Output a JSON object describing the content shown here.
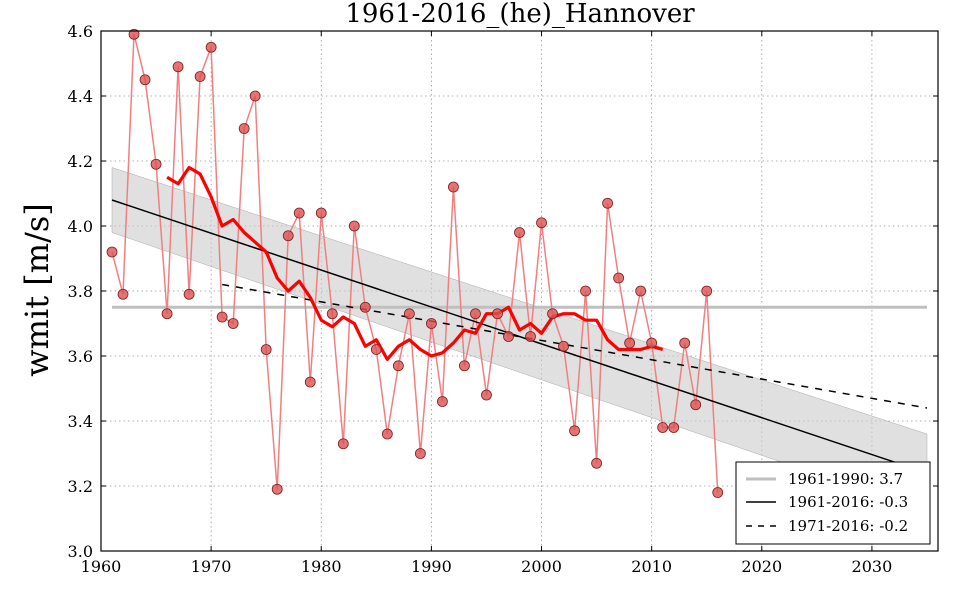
{
  "chart_data": {
    "type": "line",
    "title": "1961-2016_(he)_Hannover",
    "xlabel": "",
    "ylabel": "wmit [m/s]",
    "xlim": [
      1960,
      2036
    ],
    "ylim": [
      3.0,
      4.6
    ],
    "x_ticks": [
      "1960",
      "1970",
      "1980",
      "1990",
      "2000",
      "2010",
      "2020",
      "2030"
    ],
    "y_ticks": [
      "3.0",
      "3.2",
      "3.4",
      "3.6",
      "3.8",
      "4.0",
      "4.2",
      "4.4",
      "4.6"
    ],
    "grid": true,
    "legend_position": "lower-right",
    "colors": {
      "data": "#f08080",
      "marker_fill": "#e05050",
      "moving_avg": "#ff0000",
      "ref_line": "#bfbfbf",
      "trend": "#000000",
      "band": "#cccccc"
    },
    "series": [
      {
        "kind": "observations",
        "x": [
          1961,
          1962,
          1963,
          1964,
          1965,
          1966,
          1967,
          1968,
          1969,
          1970,
          1971,
          1972,
          1973,
          1974,
          1975,
          1976,
          1977,
          1978,
          1979,
          1980,
          1981,
          1982,
          1983,
          1984,
          1985,
          1986,
          1987,
          1988,
          1989,
          1990,
          1991,
          1992,
          1993,
          1994,
          1995,
          1996,
          1997,
          1998,
          1999,
          2000,
          2001,
          2002,
          2003,
          2004,
          2005,
          2006,
          2007,
          2008,
          2009,
          2010,
          2011,
          2012,
          2013,
          2014,
          2015,
          2016
        ],
        "y": [
          3.92,
          3.79,
          4.59,
          4.45,
          4.19,
          3.73,
          4.49,
          3.79,
          4.46,
          4.55,
          3.72,
          3.7,
          4.3,
          4.4,
          3.62,
          3.19,
          3.97,
          4.04,
          3.52,
          4.04,
          3.73,
          3.33,
          4.0,
          3.75,
          3.62,
          3.36,
          3.57,
          3.73,
          3.3,
          3.7,
          3.46,
          4.12,
          3.57,
          3.73,
          3.48,
          3.73,
          3.66,
          3.98,
          3.66,
          4.01,
          3.73,
          3.63,
          3.37,
          3.8,
          3.27,
          4.07,
          3.84,
          3.64,
          3.8,
          3.64,
          3.38,
          3.38,
          3.64,
          3.45,
          3.8,
          3.18
        ]
      },
      {
        "kind": "moving-average",
        "x": [
          1966,
          1967,
          1968,
          1969,
          1970,
          1971,
          1972,
          1973,
          1974,
          1975,
          1976,
          1977,
          1978,
          1979,
          1980,
          1981,
          1982,
          1983,
          1984,
          1985,
          1986,
          1987,
          1988,
          1989,
          1990,
          1991,
          1992,
          1993,
          1994,
          1995,
          1996,
          1997,
          1998,
          1999,
          2000,
          2001,
          2002,
          2003,
          2004,
          2005,
          2006,
          2007,
          2008,
          2009,
          2010,
          2011
        ],
        "y": [
          4.15,
          4.13,
          4.18,
          4.16,
          4.09,
          4.0,
          4.02,
          3.98,
          3.95,
          3.92,
          3.84,
          3.8,
          3.83,
          3.78,
          3.71,
          3.69,
          3.72,
          3.7,
          3.63,
          3.65,
          3.59,
          3.63,
          3.65,
          3.62,
          3.6,
          3.61,
          3.64,
          3.68,
          3.67,
          3.73,
          3.73,
          3.75,
          3.68,
          3.7,
          3.67,
          3.72,
          3.73,
          3.73,
          3.71,
          3.71,
          3.65,
          3.62,
          3.62,
          3.62,
          3.63,
          3.62
        ]
      },
      {
        "kind": "reference",
        "name": "1961-1990: 3.7",
        "x": [
          1961,
          2035
        ],
        "y": [
          3.75,
          3.75
        ]
      },
      {
        "kind": "trend",
        "name": "1961-2016: -0.3",
        "x": [
          1961,
          2035
        ],
        "y": [
          4.08,
          3.24
        ],
        "band_upper": [
          4.18,
          3.36
        ],
        "band_lower": [
          3.98,
          3.12
        ]
      },
      {
        "kind": "trend-dashed",
        "name": "1971-2016: -0.2",
        "x": [
          1971,
          2035
        ],
        "y": [
          3.82,
          3.44
        ]
      }
    ]
  }
}
